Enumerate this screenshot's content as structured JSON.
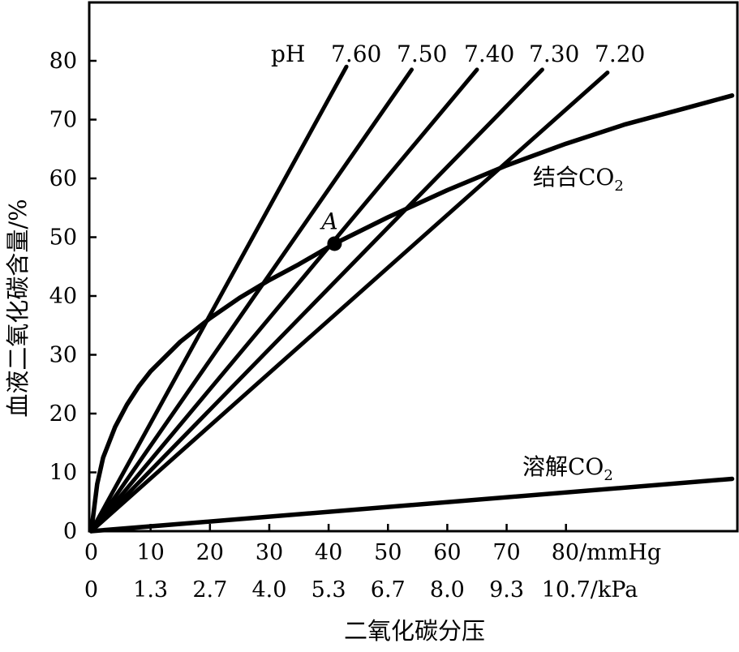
{
  "chart_data": {
    "type": "line",
    "ylabel": "血液二氧化碳含量/%",
    "xlabel": "二氧化碳分压",
    "xlim": [
      0,
      108
    ],
    "ylim": [
      0,
      80
    ],
    "x_ticks_mmHg": [
      "0",
      "10",
      "20",
      "30",
      "40",
      "50",
      "60",
      "70",
      "80/mmHg"
    ],
    "x_ticks_kPa": [
      "0",
      "1.3",
      "2.7",
      "4.0",
      "5.3",
      "6.7",
      "8.0",
      "9.3",
      "10.7/kPa"
    ],
    "y_ticks": [
      "0",
      "10",
      "20",
      "30",
      "40",
      "50",
      "60",
      "70",
      "80"
    ],
    "ph_prefix": "pH",
    "ph_lines": [
      {
        "label": "7.60",
        "end": [
          43,
          79
        ]
      },
      {
        "label": "7.50",
        "end": [
          54,
          78.5
        ]
      },
      {
        "label": "7.40",
        "end": [
          65,
          78.5
        ]
      },
      {
        "label": "7.30",
        "end": [
          76,
          78.5
        ]
      },
      {
        "label": "7.20",
        "end": [
          87,
          78
        ]
      }
    ],
    "series": [
      {
        "name": "结合CO2",
        "label_main": "结合CO",
        "label_sub": "2",
        "x": [
          0,
          1,
          2,
          4,
          6,
          8,
          10,
          15,
          20,
          25,
          30,
          35,
          41,
          50,
          60,
          70,
          80,
          90,
          100,
          108
        ],
        "y": [
          0,
          8,
          12.5,
          17.7,
          21.5,
          24.6,
          27.2,
          32.2,
          36.2,
          39.7,
          42.7,
          45.4,
          48.9,
          53.4,
          58,
          62.2,
          65.9,
          69.2,
          71.9,
          74.1
        ]
      },
      {
        "name": "溶解CO2",
        "label_main": "溶解CO",
        "label_sub": "2",
        "x": [
          0,
          108
        ],
        "y": [
          0,
          8.9
        ]
      }
    ],
    "annotations": [
      {
        "label": "A",
        "x": 41,
        "y": 48.9
      }
    ]
  }
}
